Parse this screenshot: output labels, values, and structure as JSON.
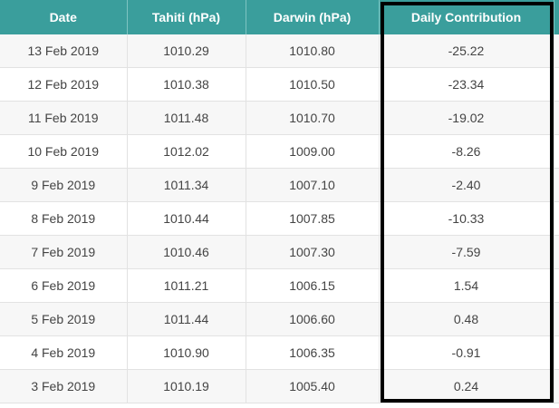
{
  "table": {
    "columns": [
      "Date",
      "Tahiti (hPa)",
      "Darwin (hPa)",
      "Daily Contribution"
    ],
    "rows": [
      {
        "date": "13 Feb 2019",
        "tahiti": "1010.29",
        "darwin": "1010.80",
        "contribution": "-25.22"
      },
      {
        "date": "12 Feb 2019",
        "tahiti": "1010.38",
        "darwin": "1010.50",
        "contribution": "-23.34"
      },
      {
        "date": "11 Feb 2019",
        "tahiti": "1011.48",
        "darwin": "1010.70",
        "contribution": "-19.02"
      },
      {
        "date": "10 Feb 2019",
        "tahiti": "1012.02",
        "darwin": "1009.00",
        "contribution": "-8.26"
      },
      {
        "date": "9 Feb 2019",
        "tahiti": "1011.34",
        "darwin": "1007.10",
        "contribution": "-2.40"
      },
      {
        "date": "8 Feb 2019",
        "tahiti": "1010.44",
        "darwin": "1007.85",
        "contribution": "-10.33"
      },
      {
        "date": "7 Feb 2019",
        "tahiti": "1010.46",
        "darwin": "1007.30",
        "contribution": "-7.59"
      },
      {
        "date": "6 Feb 2019",
        "tahiti": "1011.21",
        "darwin": "1006.15",
        "contribution": "1.54"
      },
      {
        "date": "5 Feb 2019",
        "tahiti": "1011.44",
        "darwin": "1006.60",
        "contribution": "0.48"
      },
      {
        "date": "4 Feb 2019",
        "tahiti": "1010.90",
        "darwin": "1006.35",
        "contribution": "-0.91"
      },
      {
        "date": "3 Feb 2019",
        "tahiti": "1010.19",
        "darwin": "1005.40",
        "contribution": "0.24"
      }
    ]
  },
  "colors": {
    "header_bg": "#3a9e9c",
    "header_text": "#ffffff",
    "highlight_border": "#000000"
  }
}
